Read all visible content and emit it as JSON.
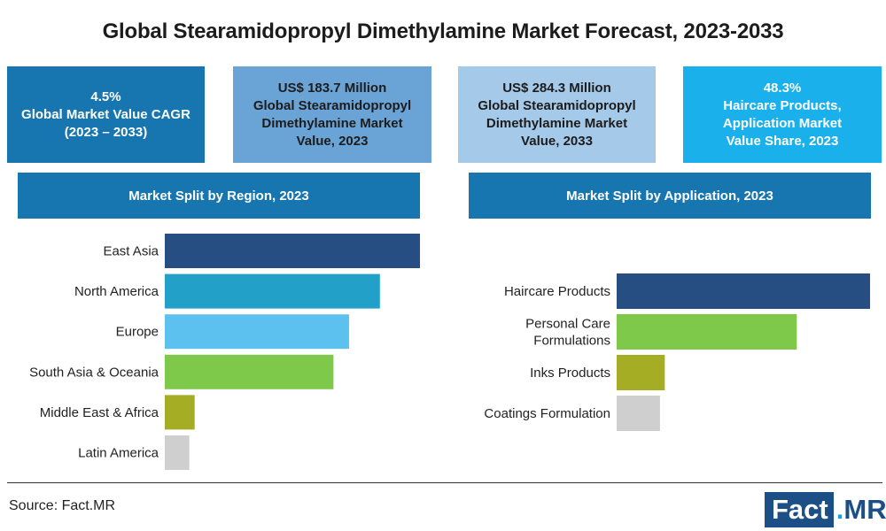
{
  "title": "Global Stearamidopropyl Dimethylamine Market Forecast, 2023-2033",
  "kpis": {
    "cagr": {
      "line1": "4.5%",
      "line2": "Global Market Value CAGR",
      "line3": "(2023 – 2033)",
      "bg": "#1776b0",
      "fg": "#ffffff"
    },
    "value_2023": {
      "line1": "US$ 183.7 Million",
      "line2": "Global Stearamidopropyl",
      "line3": "Dimethylamine Market",
      "line4": "Value, 2023",
      "bg": "#6aa4d6",
      "fg": "#1c1c1c"
    },
    "value_2033": {
      "line1": "US$ 284.3 Million",
      "line2": "Global Stearamidopropyl",
      "line3": "Dimethylamine Market",
      "line4": "Value, 2033",
      "bg": "#a5c9e9",
      "fg": "#1c1c1c"
    },
    "share": {
      "line1": "48.3%",
      "line2": "Haircare Products,",
      "line3": "Application Market",
      "line4": "Value Share, 2023",
      "bg": "#1ab0ec",
      "fg": "#ffffff"
    }
  },
  "banners": {
    "region": "Market Split by Region, 2023",
    "application": "Market Split by Application, 2023",
    "color": "#1776b0"
  },
  "chart_data": [
    {
      "type": "bar",
      "orientation": "horizontal",
      "title": "Market Split by Region, 2023",
      "categories": [
        "East Asia",
        "North America",
        "Europe",
        "South Asia & Oceania",
        "Middle East & Africa",
        "Latin America"
      ],
      "values": [
        100,
        84.3,
        72.2,
        66.1,
        11.7,
        9.6
      ],
      "colors": [
        "#264e82",
        "#22a0c8",
        "#5cc1ee",
        "#7ec84a",
        "#a4ad24",
        "#cfcfcf"
      ],
      "value_axis": "relative share, largest = 100",
      "xlim": [
        0,
        100
      ],
      "axis_labels_shown": false,
      "grid": false,
      "legend": "none"
    },
    {
      "type": "bar",
      "orientation": "horizontal",
      "title": "Market Split by Application, 2023",
      "categories": [
        "Haircare Products",
        "Personal Care Formulations",
        "Inks Products",
        "Coatings Formulation"
      ],
      "category_lines": [
        [
          "Haircare Products"
        ],
        [
          "Personal Care",
          "Formulations"
        ],
        [
          "Inks Products"
        ],
        [
          "Coatings Formulation"
        ]
      ],
      "values": [
        100,
        71.1,
        19.0,
        17.1
      ],
      "colors": [
        "#264e82",
        "#7ec84a",
        "#a4ad24",
        "#cfcfcf"
      ],
      "value_axis": "relative share, largest = 100",
      "xlim": [
        0,
        100
      ],
      "axis_labels_shown": false,
      "grid": false,
      "legend": "none"
    }
  ],
  "footer": {
    "source": "Source: Fact.MR",
    "logo": {
      "part1": "Fact",
      "part2": ".",
      "part3": "MR"
    }
  }
}
